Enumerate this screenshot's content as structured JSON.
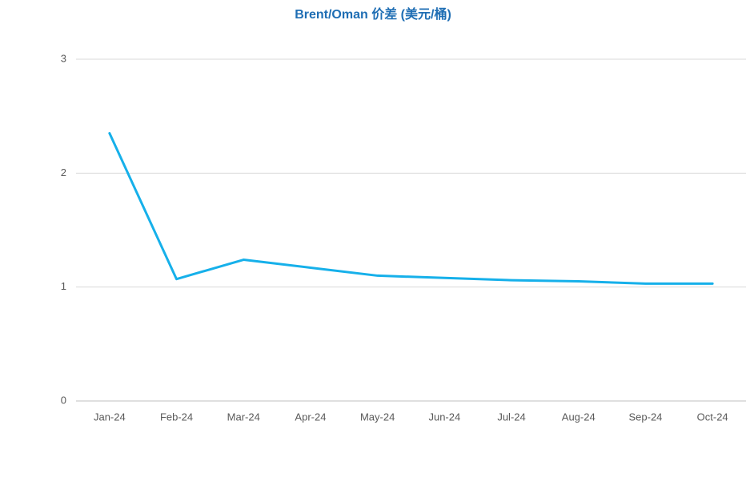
{
  "chart_data": {
    "type": "line",
    "title": "Brent/Oman 价差 (美元/桶)",
    "categories": [
      "Jan-24",
      "Feb-24",
      "Mar-24",
      "Apr-24",
      "May-24",
      "Jun-24",
      "Jul-24",
      "Aug-24",
      "Sep-24",
      "Oct-24"
    ],
    "series": [
      {
        "name": "Brent/Oman",
        "color": "#16b0ea",
        "values": [
          2.35,
          1.07,
          1.24,
          1.17,
          1.1,
          1.08,
          1.06,
          1.05,
          1.03,
          1.03
        ]
      }
    ],
    "ylim": [
      0,
      3
    ],
    "yticks": [
      0,
      1,
      2,
      3
    ],
    "grid": true
  }
}
